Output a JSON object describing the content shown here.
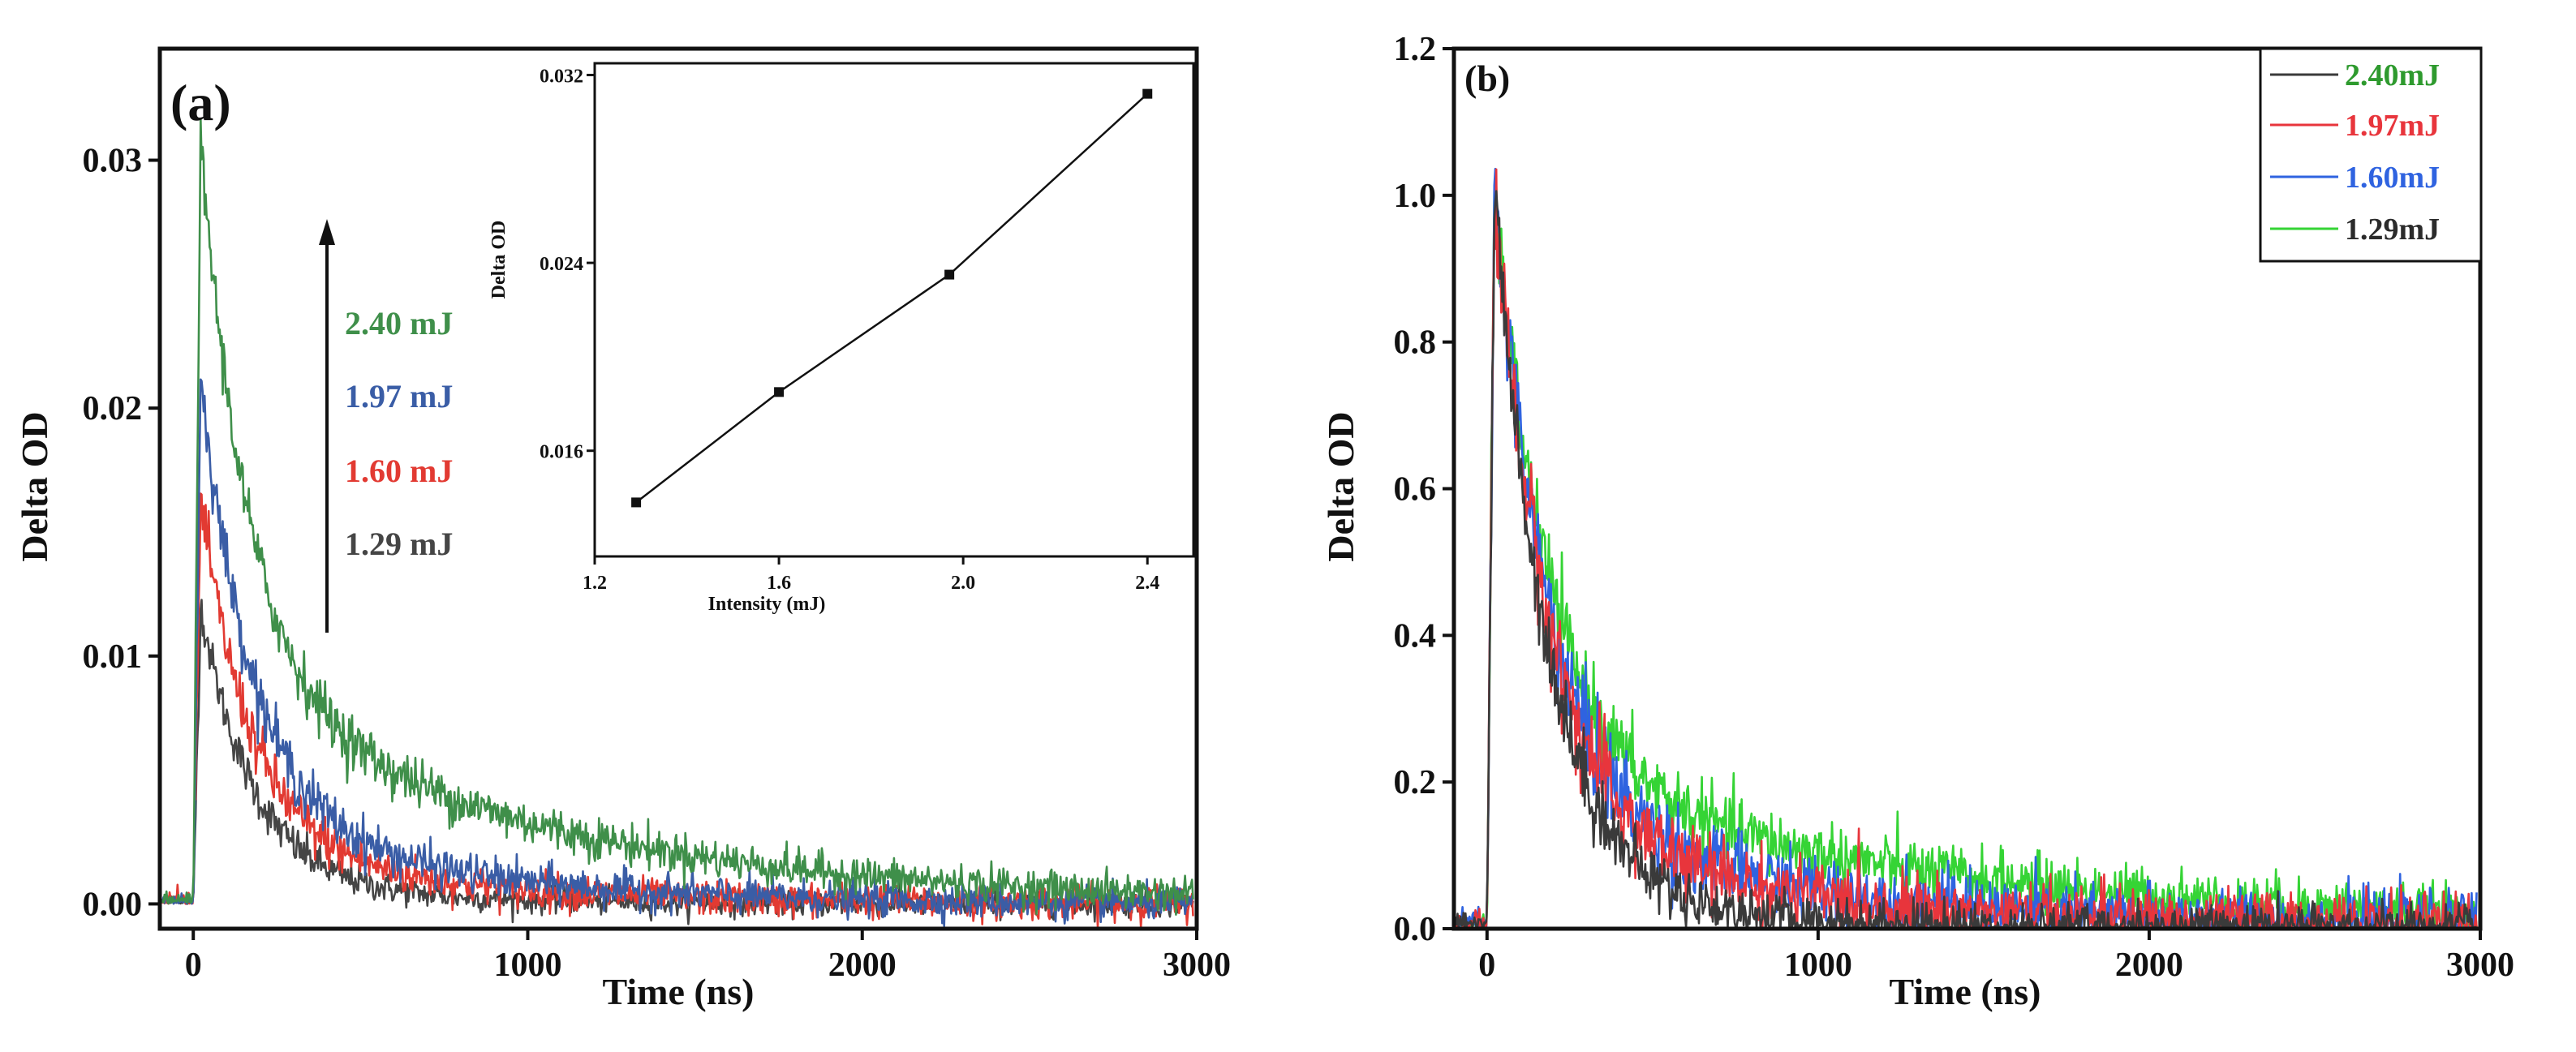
{
  "chart_data": [
    {
      "type": "line",
      "panel_label": "(a)",
      "xlabel": "Time (ns)",
      "ylabel": "Delta OD",
      "xlim": [
        -100,
        3000
      ],
      "ylim": [
        -0.001,
        0.0345
      ],
      "xticks": [
        0,
        1000,
        2000,
        3000
      ],
      "xtick_labels": [
        "0",
        "1000",
        "2000",
        "3000"
      ],
      "yticks": [
        0.0,
        0.01,
        0.02,
        0.03
      ],
      "ytick_labels": [
        "0.00",
        "0.01",
        "0.02",
        "0.03"
      ],
      "series": [
        {
          "name": "2.40 mJ",
          "color": "#3f8f4a",
          "values": {
            "peak": 0.0305,
            "fast_amp": 0.0215,
            "tau_fast": 140,
            "slow_amp": 0.0092,
            "tau_slow": 950,
            "noise": 0.0004
          }
        },
        {
          "name": "1.97 mJ",
          "color": "#3a5da6",
          "values": {
            "peak": 0.0212,
            "fast_amp": 0.0172,
            "tau_fast": 150,
            "slow_amp": 0.004,
            "tau_slow": 650,
            "noise": 0.0004
          }
        },
        {
          "name": "1.60 mJ",
          "color": "#e23a32",
          "values": {
            "peak": 0.0162,
            "fast_amp": 0.0137,
            "tau_fast": 150,
            "slow_amp": 0.0025,
            "tau_slow": 650,
            "noise": 0.0004
          }
        },
        {
          "name": "1.29 mJ",
          "color": "#454545",
          "values": {
            "peak": 0.012,
            "fast_amp": 0.011,
            "tau_fast": 155,
            "slow_amp": 0.001,
            "tau_slow": 500,
            "noise": 0.0003
          }
        }
      ],
      "arrow_annotation": "increasing intensity",
      "inset": {
        "type": "line",
        "xlabel": "Intensity (mJ)",
        "ylabel": "Delta OD",
        "xlim": [
          1.2,
          2.5
        ],
        "ylim": [
          0.0115,
          0.0325
        ],
        "xticks": [
          1.2,
          1.6,
          2.0,
          2.4
        ],
        "xtick_labels": [
          "1.2",
          "1.6",
          "2.0",
          "2.4"
        ],
        "yticks": [
          0.016,
          0.024,
          0.032
        ],
        "ytick_labels": [
          "0.016",
          "0.024",
          "0.032"
        ],
        "x": [
          1.29,
          1.6,
          1.97,
          2.4
        ],
        "y": [
          0.0138,
          0.0185,
          0.0235,
          0.0312
        ]
      }
    },
    {
      "type": "line",
      "panel_label": "(b)",
      "xlabel": "Time (ns)",
      "ylabel": "Delta OD",
      "xlim": [
        -100,
        3000
      ],
      "ylim": [
        0.0,
        1.2
      ],
      "xticks": [
        0,
        1000,
        2000,
        3000
      ],
      "xtick_labels": [
        "0",
        "1000",
        "2000",
        "3000"
      ],
      "yticks": [
        0.0,
        0.2,
        0.4,
        0.6,
        0.8,
        1.0,
        1.2
      ],
      "ytick_labels": [
        "0.0",
        "0.2",
        "0.4",
        "0.6",
        "0.8",
        "1.0",
        "1.2"
      ],
      "legend_position": "top-right",
      "series": [
        {
          "name": "2.40mJ",
          "line_color": "#3a3a3a",
          "label_color": "#2e9a2e",
          "values": {
            "peak": 1.0,
            "fast_amp": 0.93,
            "tau_fast": 160,
            "slow_amp": 0.07,
            "tau_slow": 450,
            "noise": 0.02
          }
        },
        {
          "name": "1.97mJ",
          "line_color": "#e8353c",
          "label_color": "#e8353c",
          "values": {
            "peak": 1.0,
            "fast_amp": 0.86,
            "tau_fast": 160,
            "slow_amp": 0.14,
            "tau_slow": 800,
            "noise": 0.025
          }
        },
        {
          "name": "1.60mJ",
          "line_color": "#2f63e0",
          "label_color": "#2f63e0",
          "values": {
            "peak": 1.0,
            "fast_amp": 0.84,
            "tau_fast": 165,
            "slow_amp": 0.16,
            "tau_slow": 850,
            "noise": 0.025
          }
        },
        {
          "name": "1.29mJ",
          "line_color": "#35d435",
          "label_color": "#2b2b2b",
          "values": {
            "peak": 1.0,
            "fast_amp": 0.78,
            "tau_fast": 165,
            "slow_amp": 0.22,
            "tau_slow": 1250,
            "noise": 0.02
          }
        }
      ]
    }
  ]
}
